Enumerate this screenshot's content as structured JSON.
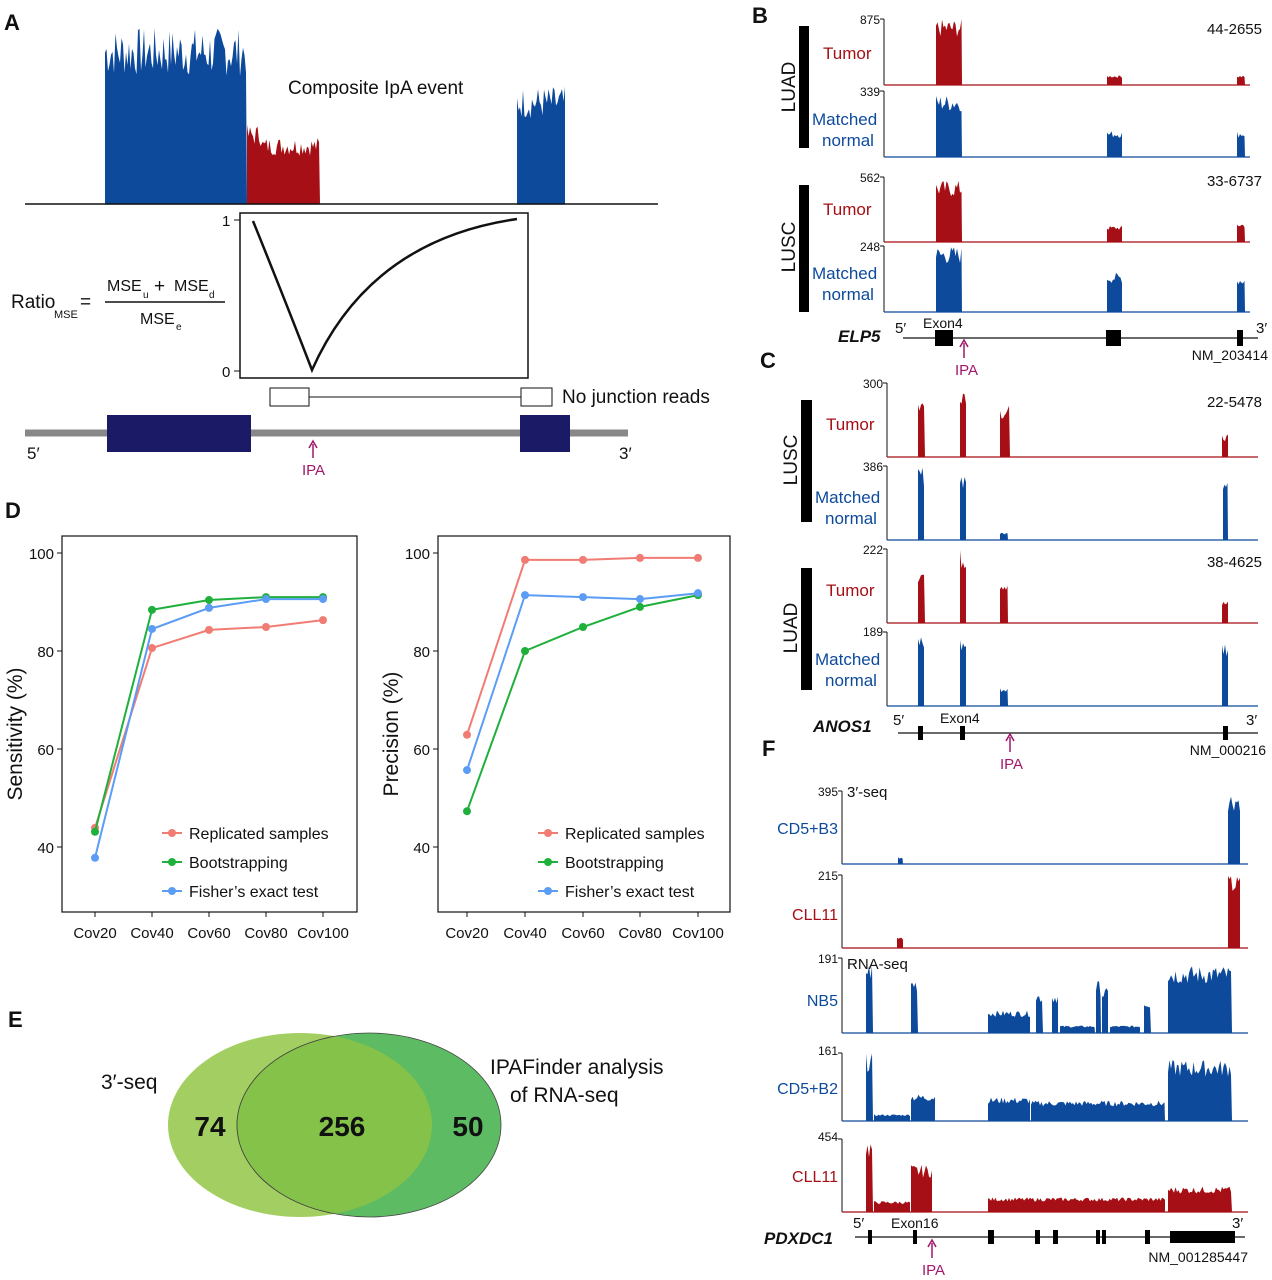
{
  "panels": {
    "A": {
      "label": "A",
      "event_title": "Composite IpA event",
      "formula": {
        "lhs": "Ratio",
        "lhs_sub": "MSE",
        "eq": "=",
        "num_a": "MSE",
        "num_a_sub": "u",
        "plus": "+",
        "num_b": "MSE",
        "num_b_sub": "d",
        "den": "MSE",
        "den_sub": "e"
      },
      "curve_ticks": [
        "1",
        "0"
      ],
      "junction_label": "No junction reads",
      "five": "5′",
      "three": "3′",
      "ipa": "IPA",
      "colors": {
        "upstream": "#0d4a9c",
        "ipa_region": "#a50f15",
        "exon": "#1a1a66"
      }
    },
    "B": {
      "label": "B",
      "groups": [
        {
          "name": "LUAD",
          "sample": "44-2655",
          "tracks": [
            {
              "label": "Tumor",
              "max": "875",
              "color": "#a50f15"
            },
            {
              "label": "Matched normal",
              "label_lines": [
                "Matched",
                "normal"
              ],
              "max": "339",
              "color": "#0d4a9c"
            }
          ]
        },
        {
          "name": "LUSC",
          "sample": "33-6737",
          "tracks": [
            {
              "label": "Tumor",
              "max": "562",
              "color": "#a50f15"
            },
            {
              "label": "Matched normal",
              "label_lines": [
                "Matched",
                "normal"
              ],
              "max": "248",
              "color": "#0d4a9c"
            }
          ]
        }
      ],
      "gene": "ELP5",
      "exon": "Exon4",
      "transcript": "NM_203414",
      "five": "5′",
      "three": "3′",
      "ipa": "IPA"
    },
    "C": {
      "label": "C",
      "groups": [
        {
          "name": "LUSC",
          "sample": "22-5478",
          "tracks": [
            {
              "label": "Tumor",
              "max": "300",
              "color": "#a50f15"
            },
            {
              "label_lines": [
                "Matched",
                "normal"
              ],
              "max": "386",
              "color": "#0d4a9c"
            }
          ]
        },
        {
          "name": "LUAD",
          "sample": "38-4625",
          "tracks": [
            {
              "label": "Tumor",
              "max": "222",
              "color": "#a50f15"
            },
            {
              "label_lines": [
                "Matched",
                "normal"
              ],
              "max": "189",
              "color": "#0d4a9c"
            }
          ]
        }
      ],
      "gene": "ANOS1",
      "exon": "Exon4",
      "transcript": "NM_000216",
      "five": "5′",
      "three": "3′",
      "ipa": "IPA"
    },
    "D": {
      "label": "D"
    },
    "E": {
      "label": "E",
      "left_label": "3′-seq",
      "right_label_lines": [
        "IPAFinder analysis",
        "of RNA-seq"
      ],
      "left_only": "74",
      "overlap": "256",
      "right_only": "50",
      "colors": {
        "left": "#a3cf62",
        "overlap": "#84c24a",
        "right": "#5dbb63"
      }
    },
    "F": {
      "label": "F",
      "tracks": [
        {
          "label": "CD5+B3",
          "max": "395",
          "assay": "3′-seq",
          "color": "#0d4a9c"
        },
        {
          "label": "CLL11",
          "max": "215",
          "color": "#a50f15"
        },
        {
          "label": "NB5",
          "max": "191",
          "assay": "RNA-seq",
          "color": "#0d4a9c"
        },
        {
          "label": "CD5+B2",
          "max": "161",
          "color": "#0d4a9c"
        },
        {
          "label": "CLL11",
          "max": "454",
          "color": "#a50f15"
        }
      ],
      "gene": "PDXDC1",
      "exon": "Exon16",
      "transcript": "NM_001285447",
      "five": "5′",
      "three": "3′",
      "ipa": "IPA"
    }
  },
  "chart_data": [
    {
      "type": "line",
      "ylabel": "Sensitivity (%)",
      "xlabel": "",
      "categories": [
        "Cov20",
        "Cov40",
        "Cov60",
        "Cov80",
        "Cov100"
      ],
      "ylim": [
        30,
        103
      ],
      "yticks": [
        40,
        60,
        80,
        100
      ],
      "legend_position": "bottom-right",
      "grid": false,
      "series": [
        {
          "name": "Replicated samples",
          "color": "#f07c73",
          "values": [
            43.9,
            80.6,
            84.3,
            84.9,
            86.3
          ]
        },
        {
          "name": "Bootstrapping",
          "color": "#1fb03c",
          "values": [
            43.1,
            88.4,
            90.4,
            91.0,
            91.0
          ]
        },
        {
          "name": "Fisher’s exact test",
          "color": "#5b9cf5",
          "values": [
            37.8,
            84.5,
            88.8,
            90.6,
            90.6
          ]
        }
      ]
    },
    {
      "type": "line",
      "ylabel": "Precision (%)",
      "xlabel": "",
      "categories": [
        "Cov20",
        "Cov40",
        "Cov60",
        "Cov80",
        "Cov100"
      ],
      "ylim": [
        30,
        103
      ],
      "yticks": [
        40,
        60,
        80,
        100
      ],
      "legend_position": "bottom-right",
      "grid": false,
      "series": [
        {
          "name": "Replicated samples",
          "color": "#f07c73",
          "values": [
            62.9,
            98.6,
            98.6,
            99.0,
            99.0
          ]
        },
        {
          "name": "Bootstrapping",
          "color": "#1fb03c",
          "values": [
            47.3,
            80.0,
            84.9,
            89.0,
            91.4
          ]
        },
        {
          "name": "Fisher’s exact test",
          "color": "#5b9cf5",
          "values": [
            55.7,
            91.4,
            91.0,
            90.6,
            91.8
          ]
        }
      ]
    }
  ]
}
